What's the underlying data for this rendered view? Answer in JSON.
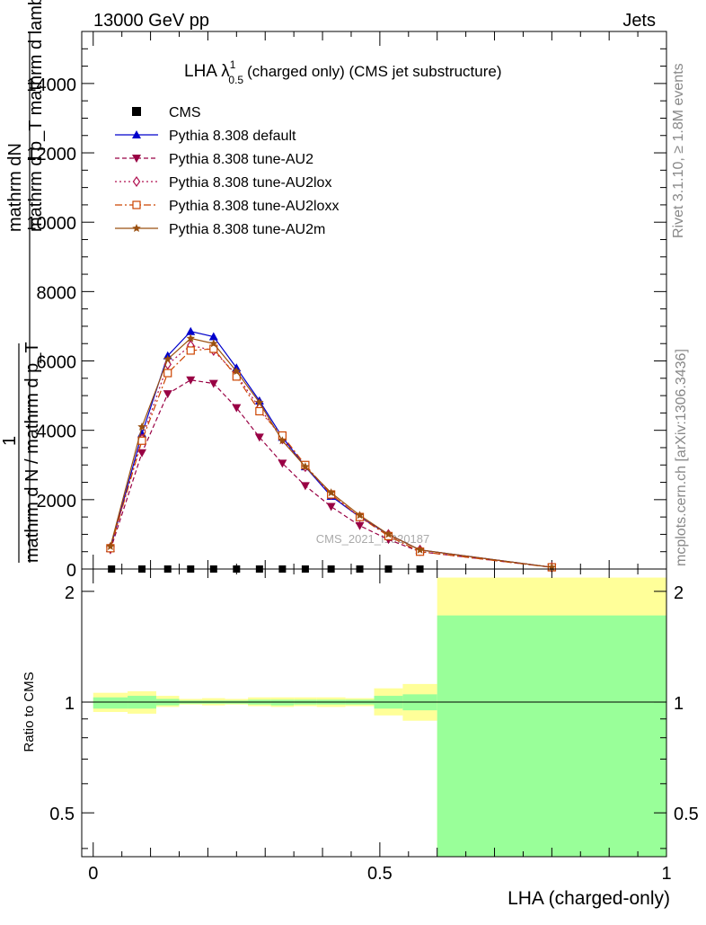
{
  "header": {
    "energy_label": "13000 GeV pp",
    "process_label": "Jets",
    "side_rivet": "Rivet 3.1.10, ≥ 1.8M events",
    "side_mcplots": "mcplots.cern.ch [arXiv:1306.3436]",
    "watermark": "CMS_2021_I1920187"
  },
  "chart_data": [
    {
      "type": "line",
      "title_main": "LHA λ",
      "title_sup": "1",
      "title_sub": "0.5",
      "title_rest": "(charged only) (CMS jet substructure)",
      "ylabel_top": "mathrm dN",
      "ylabel_top2": "mathrm d p_T mathrm d lambda",
      "ylabel_bottom": "mathrm d N / mathrm d p_T",
      "ylabel_bottom_sub": "T",
      "ylabel_one": "1",
      "ylim": [
        0,
        15500
      ],
      "xlim": [
        -0.02,
        1.0
      ],
      "y_ticks": [
        0,
        2000,
        4000,
        6000,
        8000,
        10000,
        12000,
        14000
      ],
      "y_tick_labels": [
        "0",
        "2000",
        "4000",
        "6000",
        "8000",
        "10000",
        "12000",
        "14000"
      ],
      "legend_position": "top-left",
      "data": {
        "name": "CMS",
        "color": "#000000",
        "x": [
          0.032,
          0.085,
          0.13,
          0.17,
          0.21,
          0.25,
          0.29,
          0.33,
          0.37,
          0.415,
          0.465,
          0.515,
          0.57
        ],
        "y": [
          0,
          0,
          0,
          0,
          0,
          0,
          0,
          0,
          0,
          0,
          0,
          0,
          0
        ]
      },
      "series": [
        {
          "name": "Pythia 8.308 default",
          "color": "#0000cc",
          "marker": "triangle-up",
          "dash": "",
          "x": [
            0.03,
            0.085,
            0.13,
            0.17,
            0.21,
            0.25,
            0.29,
            0.33,
            0.37,
            0.415,
            0.465,
            0.515,
            0.57,
            0.8
          ],
          "y": [
            600,
            3900,
            6150,
            6850,
            6700,
            5800,
            4850,
            3800,
            2950,
            2100,
            1500,
            1000,
            550,
            50
          ]
        },
        {
          "name": "Pythia 8.308 tune-AU2",
          "color": "#990044",
          "marker": "triangle-down",
          "dash": "5,3",
          "x": [
            0.03,
            0.085,
            0.13,
            0.17,
            0.21,
            0.25,
            0.29,
            0.33,
            0.37,
            0.415,
            0.465,
            0.515,
            0.57,
            0.8
          ],
          "y": [
            550,
            3350,
            5050,
            5450,
            5350,
            4650,
            3800,
            3050,
            2400,
            1800,
            1250,
            850,
            500,
            50
          ]
        },
        {
          "name": "Pythia 8.308 tune-AU2lox",
          "color": "#b01050",
          "marker": "diamond-open",
          "dash": "2,3",
          "x": [
            0.03,
            0.085,
            0.13,
            0.17,
            0.21,
            0.25,
            0.29,
            0.33,
            0.37,
            0.415,
            0.465,
            0.515,
            0.57,
            0.8
          ],
          "y": [
            620,
            3750,
            5900,
            6450,
            6300,
            5600,
            4650,
            3750,
            2950,
            2150,
            1500,
            1000,
            550,
            50
          ]
        },
        {
          "name": "Pythia 8.308 tune-AU2loxx",
          "color": "#cc4400",
          "marker": "square-open",
          "dash": "8,3,2,3",
          "x": [
            0.03,
            0.085,
            0.13,
            0.17,
            0.21,
            0.25,
            0.29,
            0.33,
            0.37,
            0.415,
            0.465,
            0.515,
            0.57,
            0.8
          ],
          "y": [
            600,
            3700,
            5650,
            6300,
            6350,
            5550,
            4550,
            3850,
            3000,
            2150,
            1500,
            950,
            500,
            50
          ]
        },
        {
          "name": "Pythia 8.308 tune-AU2m",
          "color": "#9a5010",
          "marker": "star",
          "dash": "",
          "x": [
            0.03,
            0.085,
            0.13,
            0.17,
            0.21,
            0.25,
            0.29,
            0.33,
            0.37,
            0.415,
            0.465,
            0.515,
            0.57,
            0.8
          ],
          "y": [
            650,
            4100,
            6050,
            6650,
            6500,
            5700,
            4800,
            3700,
            2950,
            2200,
            1550,
            1000,
            550,
            50
          ]
        }
      ]
    },
    {
      "type": "area",
      "ylabel": "Ratio to CMS",
      "xlabel": "LHA (charged-only)",
      "x_ticks": [
        0,
        0.5,
        1
      ],
      "x_tick_labels": [
        "0",
        "0.5",
        "1"
      ],
      "y_ticks": [
        0.5,
        1,
        2
      ],
      "y_tick_labels": [
        "0.5",
        "1",
        "2"
      ],
      "y_scale": "log",
      "ylim": [
        0.38,
        2.3
      ],
      "bins": [
        {
          "x0": 0.0,
          "x1": 0.06,
          "inner": [
            0.96,
            1.03
          ],
          "outer": [
            0.94,
            1.06
          ]
        },
        {
          "x0": 0.06,
          "x1": 0.11,
          "inner": [
            0.96,
            1.04
          ],
          "outer": [
            0.93,
            1.07
          ]
        },
        {
          "x0": 0.11,
          "x1": 0.15,
          "inner": [
            0.98,
            1.02
          ],
          "outer": [
            0.97,
            1.04
          ]
        },
        {
          "x0": 0.15,
          "x1": 0.19,
          "inner": [
            0.99,
            1.01
          ],
          "outer": [
            0.985,
            1.02
          ]
        },
        {
          "x0": 0.19,
          "x1": 0.23,
          "inner": [
            0.99,
            1.01
          ],
          "outer": [
            0.98,
            1.025
          ]
        },
        {
          "x0": 0.23,
          "x1": 0.27,
          "inner": [
            0.99,
            1.01
          ],
          "outer": [
            0.985,
            1.02
          ]
        },
        {
          "x0": 0.27,
          "x1": 0.31,
          "inner": [
            0.985,
            1.015
          ],
          "outer": [
            0.975,
            1.03
          ]
        },
        {
          "x0": 0.31,
          "x1": 0.35,
          "inner": [
            0.98,
            1.015
          ],
          "outer": [
            0.97,
            1.03
          ]
        },
        {
          "x0": 0.35,
          "x1": 0.39,
          "inner": [
            0.985,
            1.015
          ],
          "outer": [
            0.975,
            1.03
          ]
        },
        {
          "x0": 0.39,
          "x1": 0.44,
          "inner": [
            0.985,
            1.015
          ],
          "outer": [
            0.97,
            1.03
          ]
        },
        {
          "x0": 0.44,
          "x1": 0.49,
          "inner": [
            0.985,
            1.015
          ],
          "outer": [
            0.975,
            1.025
          ]
        },
        {
          "x0": 0.49,
          "x1": 0.54,
          "inner": [
            0.96,
            1.04
          ],
          "outer": [
            0.92,
            1.09
          ]
        },
        {
          "x0": 0.54,
          "x1": 0.6,
          "inner": [
            0.95,
            1.05
          ],
          "outer": [
            0.89,
            1.12
          ]
        },
        {
          "x0": 0.6,
          "x1": 1.0,
          "inner": [
            0.35,
            1.72
          ],
          "outer": [
            0.35,
            2.18
          ]
        }
      ],
      "band_colors": {
        "inner": "#99ff99",
        "outer": "#ffff99"
      }
    }
  ]
}
